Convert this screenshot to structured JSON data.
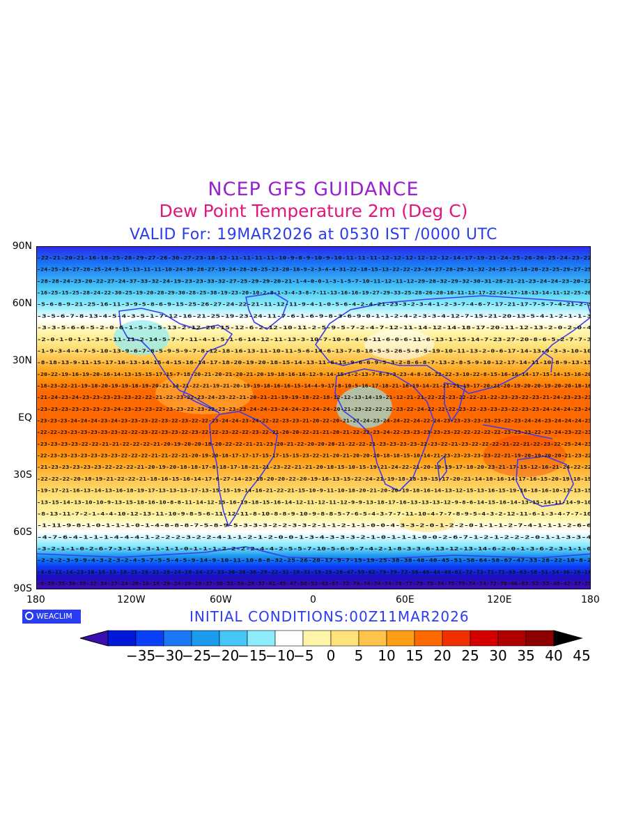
{
  "titles": {
    "line1": "NCEP GFS GUIDANCE",
    "line2": "Dew Point Temperature 2m (Deg C)",
    "line3": "VALID For: 19MAR2026 at 0530 IST /0000 UTC"
  },
  "colors": {
    "title1": "#9a1fd1",
    "title2": "#e2157f",
    "title3": "#2a3cf0",
    "coast": "#3a3cf0"
  },
  "lat_labels": [
    "90N",
    "60N",
    "30N",
    "EQ",
    "30S",
    "60S",
    "90S"
  ],
  "lon_labels": [
    "180",
    "120W",
    "60W",
    "0",
    "60E",
    "120E",
    "180"
  ],
  "logo": {
    "icon": "copyright-ring-icon",
    "text": "WEACLIM"
  },
  "initial_conditions": "INITIAL  CONDITIONS:00Z11MAR2026",
  "colorbar": {
    "labels": [
      "-35",
      "-30",
      "-25",
      "-20",
      "-15",
      "-10",
      "-5",
      "0",
      "5",
      "10",
      "15",
      "20",
      "25",
      "30",
      "35",
      "40",
      "45"
    ],
    "colors": [
      "#3a0fb0",
      "#0018d8",
      "#0a40f8",
      "#1a78f4",
      "#1c9aee",
      "#46c6f6",
      "#8cecfc",
      "#ffffff",
      "#fff5a8",
      "#ffe27a",
      "#ffc24a",
      "#ff9e16",
      "#ff6a00",
      "#f03000",
      "#d40000",
      "#b00000",
      "#8c0000",
      "#000000"
    ]
  },
  "map_rows": [
    {
      "band": "85N",
      "values": "-22-21-20-21-16-18-25-28-29-27-26-30-27-23-18-12-11-11-11-11-10-9-8-9-10-9-10-11-11-11-12-12-12-12-12-12-14-17-19-21-24-25-26-26-25-24-23-22"
    },
    {
      "band": "80N",
      "values": "-24-25-24-27-28-25-24-9-15-13-11-11-10-24-30-28-27-19-24-28-26-25-23-20-16-9-2-3-4-4-31-22-18-15-13-22-22-23-24-27-28-29-31-32-24-25-25-18-20-23-25-29-27-25"
    },
    {
      "band": "75N",
      "values": "-28-28-24-23-20-22-27-24-37-33-32-24-19-23-23-33-32-27-25-29-29-20-21-1-4-0-0-1-3-1-5-7-10-11-12-11-12-29-28-32-29-32-30-31-28-21-21-23-24-24-23-20-22"
    },
    {
      "band": "70N",
      "values": "-16-25-15-25-28-24-22-30-25-19-20-28-29-30-28-25-38-19-23-20-10-2-8-1-3-4-3-8-7-11-13-16-16-19-27-29-33-25-28-26-20-10-11-13-17-22-24-17-18-13-14-11-12-25-20"
    },
    {
      "band": "65N",
      "values": "-5-6-8-9-21-25-16-11-3-9-5-8-6-9-15-25-26-27-24-22-21-11-12-11-9-4-1-0-5-6-4-2-4-21-23-3-2-3-4-1-2-3-7-4-6-7-17-21-17-7-5-7-4-21-2-3"
    },
    {
      "band": "55N",
      "values": "-3-5-6-7-8-13-4-5-4-3-5-1-7-12-16-21-25-19-23-24-11-7-6-1-6-9-8-3-6-9-0-1-1-2-4-2-3-3-4-12-7-15-21-20-13-5-4-1-2-1-1-3"
    },
    {
      "band": "50N",
      "values": "-3-3-5-6-6-5-2-0-6-1-5-3-5-13-2-12-20-15-12-6-2-12-10-11-2-5-9-5-7-2-4-7-12-11-14-12-14-18-17-20-11-12-13-2-0-2-0-4"
    },
    {
      "band": "45N",
      "values": "-2-0-1-0-1-1-3-5-11-11-2-14-5-7-7-11-4-1-5-1-6-14-12-11-13-3-10-7-10-8-4-6-11-6-0-6-11-6-13-1-15-14-7-23-27-20-8-6-5-2-7-7-3"
    },
    {
      "band": "40N",
      "values": "-1-9-3-4-4-7-5-10-13-9-6-7-8-5-9-5-9-7-8-12-18-16-13-11-10-11-5-6-14-6-13-7-8-18-5-5-26-5-8-5-19-10-11-13-2-0-6-17-14-13-9-3-3-10-10"
    },
    {
      "band": "35N",
      "values": "-8-18-13-9-11-15-17-16-13-14-15-4-15-16-14-17-18-20-19-20-18-15-14-13-11-6-15-9-6-6-9-5-3-2-8-6-8-7-13-2-8-5-9-10-12-17-14-11-10-8-9-13-15"
    },
    {
      "band": "30N",
      "values": "-20-22-19-16-19-20-16-14-13-15-15-17-15-7-18-20-21-20-21-20-21-20-19-18-16-16-12-9-14-15-1-2-13-7-8-3-3-23-4-8-16-22-22-3-10-22-8-15-16-16-14-17-15-14-15-16-20"
    },
    {
      "band": "25N",
      "values": "-18-23-22-21-19-18-20-19-19-18-19-20-21-14-21-22-21-19-21-20-19-19-18-16-16-15-14-4-9-17-8-10-5-16-17-18-21-16-19-14-21-21-21-19-17-20-21-20-19-20-20-19-20-20-18-16"
    },
    {
      "band": "20N",
      "values": "-21-24-23-24-23-23-23-23-23-22-22-21-22-23-22-23-24-23-22-21-20-21-21-19-19-18-22-18-12-12-13-14-19-21-12-21-21-22-22-23-22-22-21-22-23-23-22-23-21-24-23-23-23"
    },
    {
      "band": "15N",
      "values": "-23-23-23-23-23-23-23-24-23-23-23-22-23-23-22-23-22-23-23-23-24-24-23-24-24-23-24-24-20-21-23-22-22-22-23-22-24-22-22-22-23-22-23-23-23-22-23-23-24-24-24-23-24"
    },
    {
      "band": "10N",
      "values": "-23-23-23-24-24-24-23-24-23-23-23-22-23-22-23-22-22-23-24-24-23-24-22-22-23-23-21-20-22-20-21-27-24-23-24-24-22-24-22-24-23-23-23-23-23-23-22-23-24-24-23-24-24-24-23"
    },
    {
      "band": "5N",
      "values": "-22-22-23-23-23-23-23-23-22-22-23-22-23-23-22-23-22-22-23-22-22-23-22-21-20-20-22-21-21-20-21-22-22-23-24-22-23-23-23-23-23-22-22-22-22-22-23-23-23-22-23-24-23-22-23"
    },
    {
      "band": "0",
      "values": "-23-23-23-23-22-22-21-21-22-22-22-21-20-19-20-20-18-20-22-22-21-21-23-20-21-22-20-20-20-21-22-22-21-23-23-23-23-22-23-22-21-23-22-22-22-21-22-21-22-23-22-25-24-23"
    },
    {
      "band": "5S",
      "values": "-22-23-23-23-23-23-23-23-22-22-22-21-21-22-21-20-19-20-18-17-17-17-15-17-15-15-23-22-21-20-21-20-20-20-18-18-15-10-14-21-23-23-23-23-23-22-21-19-20-19-20-20-21-23-22"
    },
    {
      "band": "10S",
      "values": "-21-23-23-23-23-23-22-22-22-21-20-19-20-18-18-17-8-18-17-18-21-21-23-22-21-21-20-18-15-10-15-19-21-24-22-21-20-19-19-17-18-20-23-21-17-15-12-16-21-24-22-22"
    },
    {
      "band": "15S",
      "values": "-22-22-22-20-18-19-21-22-22-21-18-16-15-16-14-17-6-27-14-23-18-20-20-22-20-19-16-13-15-22-24-21-19-18-18-19-15-17-20-21-14-18-16-14-17-16-15-20-19-18-19"
    },
    {
      "band": "20S",
      "values": "-19-17-21-16-13-14-13-16-18-19-17-13-13-13-17-13-15-15-19-14-16-21-22-21-15-10-9-11-10-18-20-21-20-20-19-18-16-14-13-12-15-13-16-15-19-16-18-16-10-17-13-15"
    },
    {
      "band": "25S",
      "values": "-13-15-14-13-10-10-9-13-15-18-16-10-8-8-11-14-12-15-16-19-18-15-16-14-12-11-12-11-12-9-9-13-18-17-16-13-13-13-12-9-8-6-14-15-16-14-13-15-14-11-14-9-10"
    },
    {
      "band": "30S",
      "values": "-8-13-11-7-2-1-4-4-10-12-13-11-10-9-8-5-6-11-12-11-8-10-8-8-9-10-9-8-8-5-7-6-5-4-3-7-7-11-10-4-7-7-8-9-5-4-3-2-12-11-6-1-3-4-7-7-10"
    },
    {
      "band": "35S",
      "values": "-1-11-9-8-1-0-1-1-1-0-1-4-8-8-8-7-5-8-9-5-3-3-3-2-2-3-3-2-1-1-2-1-1-0-0-4-3-3-2-0-1-2-2-0-1-1-1-2-7-4-1-1-1-2-6-6"
    },
    {
      "band": "40S",
      "values": "-4-7-6-4-1-1-1-4-4-4-1-2-2-2-3-2-2-4-1-1-2-1-2-0-0-1-3-4-3-3-3-2-1-0-1-1-1-0-0-2-6-7-1-2-1-2-2-2-0-1-1-3-3-4"
    },
    {
      "band": "45S",
      "values": "-3-2-1-1-0-2-6-7-3-1-3-3-1-1-1-0-1-1-1-2-2-2-2-4-4-2-5-5-7-10-5-6-9-7-4-2-1-8-3-3-6-13-12-13-14-6-2-0-1-3-6-2-3-1-1-0"
    },
    {
      "band": "50S",
      "values": "-2-2-2-3-9-9-4-3-2-3-2-4-5-7-5-5-4-5-9-14-9-10-11-10-8-8-32-25-26-20-17-9-7-15-19-25-38-38-48-40-45-51-58-64-58-67-47-33-28-22-10-8-2"
    },
    {
      "band": "55S",
      "values": "-4-6-11-14-23-18-18-13-18-25-26-31-28-24-28-24-27-33-30-38-36-29-22-32-19-31-19-25-28-47-59-62-79-79-73-56-48-44-49-61-72-73-71-71-85-63-58-51-54-36-26-16"
    },
    {
      "band": "60S",
      "values": "-8-39-35-30-35-32-34-27-24-20-16-18-20-24-20-28-37-30-32-30-28-37-41-45-47-50-53-62-67-72-74-74-74-74-78-77-79-75-74-75-79-74-74-72-70-66-63-52-53-48-42-37-35"
    }
  ]
}
